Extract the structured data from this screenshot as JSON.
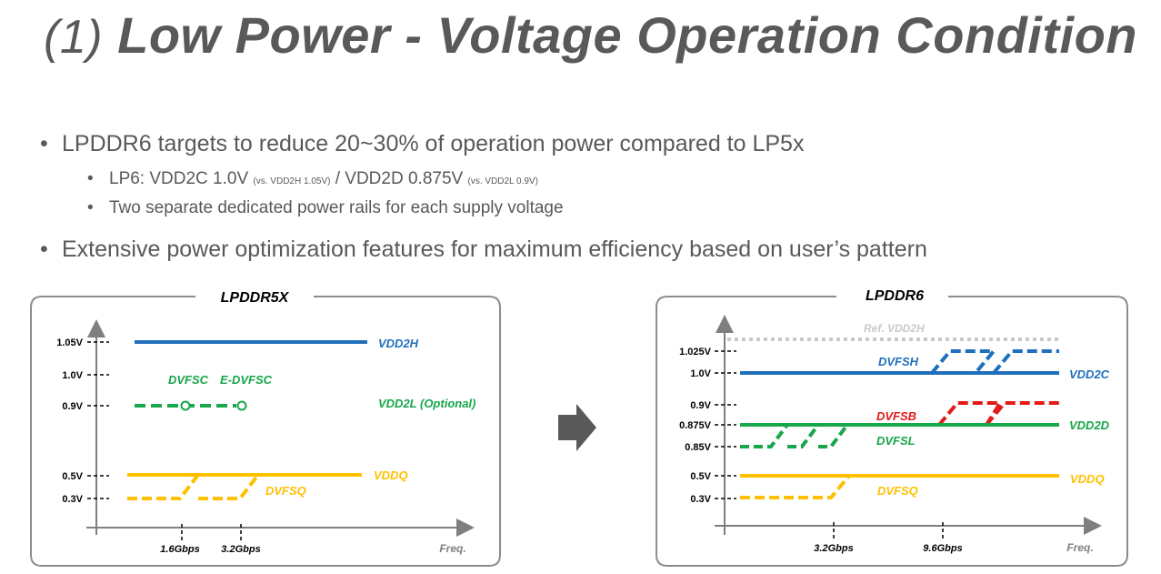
{
  "title": {
    "number": "(1)",
    "text": "Low Power - Voltage Operation Condition"
  },
  "bullets": {
    "b1": "LPDDR6 targets to reduce 20~30% of operation power compared to LP5x",
    "b1a_main1": "LP6: VDD2C 1.0V ",
    "b1a_small1": "(vs. VDD2H 1.05V)",
    "b1a_main2": " / VDD2D 0.875V ",
    "b1a_small2": "(vs. VDD2L 0.9V)",
    "b1b": "Two separate dedicated power rails for each supply voltage",
    "b2": "Extensive power optimization features for maximum efficiency based on user’s pattern"
  },
  "colors": {
    "blue": "#1f6fbd",
    "green": "#17a64a",
    "yellow": "#ffc000",
    "red": "#e21a1a",
    "gray": "#c9c9c9",
    "arrow": "#595959"
  },
  "left_panel": {
    "title": "LPDDR5X",
    "y_ticks": [
      "1.05V",
      "1.0V",
      "0.9V",
      "0.5V",
      "0.3V"
    ],
    "x_ticks": [
      "1.6Gbps",
      "3.2Gbps"
    ],
    "x_axis": "Freq.",
    "labels": {
      "vdd2h": "VDD2H",
      "dvfsc": "DVFSC",
      "edvfsc": "E-DVFSC",
      "vdd2l": "VDD2L (Optional)",
      "vddq": "VDDQ",
      "dvfsq": "DVFSQ"
    }
  },
  "right_panel": {
    "title": "LPDDR6",
    "y_ticks": [
      "1.025V",
      "1.0V",
      "0.9V",
      "0.875V",
      "0.85V",
      "0.5V",
      "0.3V"
    ],
    "x_ticks": [
      "3.2Gbps",
      "9.6Gbps"
    ],
    "x_axis": "Freq.",
    "labels": {
      "ref": "Ref. VDD2H",
      "dvfsh": "DVFSH",
      "vdd2c": "VDD2C",
      "dvfsb": "DVFSB",
      "vdd2d": "VDD2D",
      "dvfsl": "DVFSL",
      "vddq": "VDDQ",
      "dvfsq": "DVFSQ"
    }
  }
}
